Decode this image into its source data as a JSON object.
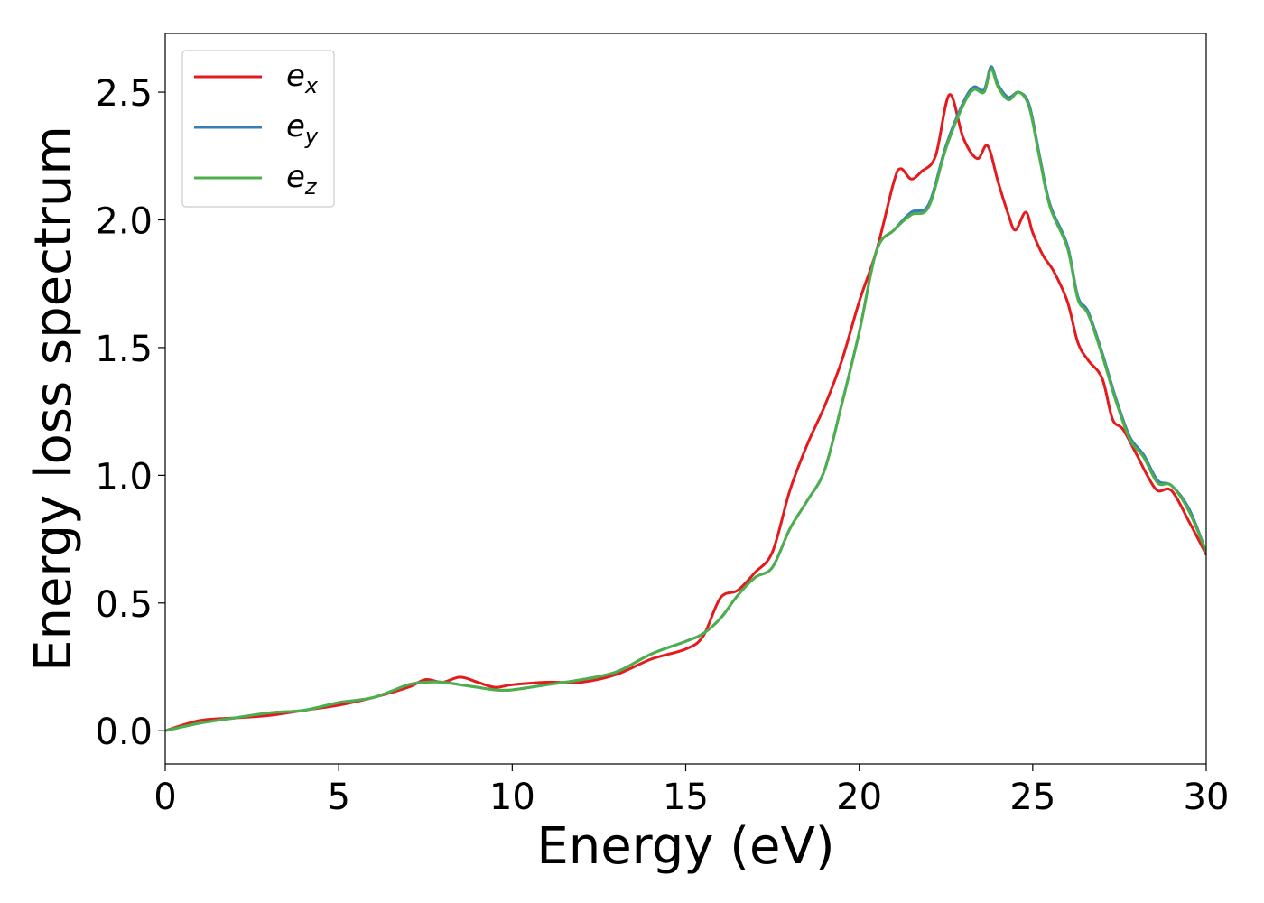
{
  "chart_data": {
    "type": "line",
    "xlabel": "Energy (eV)",
    "ylabel": "Energy loss spectrum",
    "xlim": [
      0,
      30
    ],
    "ylim": [
      -0.13,
      2.73
    ],
    "xticks": [
      0,
      5,
      10,
      15,
      20,
      25,
      30
    ],
    "xtick_labels": [
      "0",
      "5",
      "10",
      "15",
      "20",
      "25",
      "30"
    ],
    "yticks": [
      0.0,
      0.5,
      1.0,
      1.5,
      2.0,
      2.5
    ],
    "ytick_labels": [
      "0.0",
      "0.5",
      "1.0",
      "1.5",
      "2.0",
      "2.5"
    ],
    "grid": false,
    "legend_position": "top-left",
    "series": [
      {
        "name": "e_x",
        "label_main": "e",
        "label_sub": "x",
        "color": "#e41a1c",
        "x": [
          0,
          1,
          2,
          3,
          4,
          5,
          6,
          7,
          7.5,
          8,
          8.5,
          9,
          9.5,
          10,
          11,
          12,
          13,
          14,
          15,
          15.5,
          16,
          16.5,
          17,
          17.5,
          18,
          18.5,
          19,
          19.5,
          20,
          20.5,
          21,
          21.2,
          21.5,
          21.8,
          22.2,
          22.6,
          23.0,
          23.4,
          23.7,
          24.0,
          24.3,
          24.5,
          24.8,
          25.0,
          25.3,
          25.6,
          26.0,
          26.3,
          26.6,
          27.0,
          27.3,
          27.6,
          28.0,
          28.3,
          28.6,
          29.0,
          29.5,
          30
        ],
        "y": [
          0.0,
          0.04,
          0.05,
          0.06,
          0.08,
          0.1,
          0.13,
          0.17,
          0.2,
          0.19,
          0.21,
          0.19,
          0.17,
          0.18,
          0.19,
          0.19,
          0.22,
          0.28,
          0.32,
          0.37,
          0.52,
          0.55,
          0.62,
          0.7,
          0.94,
          1.12,
          1.27,
          1.45,
          1.68,
          1.88,
          2.15,
          2.2,
          2.16,
          2.19,
          2.25,
          2.49,
          2.32,
          2.24,
          2.29,
          2.15,
          2.02,
          1.96,
          2.03,
          1.95,
          1.86,
          1.8,
          1.68,
          1.52,
          1.45,
          1.38,
          1.22,
          1.18,
          1.08,
          1.0,
          0.94,
          0.94,
          0.82,
          0.69
        ]
      },
      {
        "name": "e_y",
        "label_main": "e",
        "label_sub": "y",
        "color": "#377eb8",
        "x": [
          0,
          1,
          2,
          3,
          4,
          5,
          6,
          7,
          7.5,
          8,
          8.5,
          9,
          9.5,
          10,
          11,
          12,
          13,
          14,
          15,
          15.5,
          16,
          16.5,
          17,
          17.5,
          18,
          18.5,
          19,
          19.5,
          20,
          20.5,
          21,
          21.5,
          22,
          22.5,
          23,
          23.3,
          23.6,
          23.8,
          24.0,
          24.3,
          24.6,
          24.9,
          25.2,
          25.5,
          26.0,
          26.3,
          26.6,
          27.0,
          27.4,
          27.8,
          28.2,
          28.6,
          29.0,
          29.5,
          30
        ],
        "y": [
          0.0,
          0.03,
          0.05,
          0.07,
          0.08,
          0.11,
          0.13,
          0.18,
          0.19,
          0.19,
          0.18,
          0.17,
          0.16,
          0.16,
          0.18,
          0.2,
          0.23,
          0.3,
          0.35,
          0.38,
          0.44,
          0.53,
          0.6,
          0.64,
          0.79,
          0.9,
          1.02,
          1.28,
          1.56,
          1.88,
          1.96,
          2.03,
          2.06,
          2.29,
          2.46,
          2.52,
          2.51,
          2.6,
          2.53,
          2.48,
          2.5,
          2.45,
          2.25,
          2.06,
          1.9,
          1.7,
          1.64,
          1.48,
          1.3,
          1.15,
          1.08,
          0.98,
          0.96,
          0.87,
          0.7
        ]
      },
      {
        "name": "e_z",
        "label_main": "e",
        "label_sub": "z",
        "color": "#4daf4a",
        "x": [
          0,
          1,
          2,
          3,
          4,
          5,
          6,
          7,
          7.5,
          8,
          8.5,
          9,
          9.5,
          10,
          11,
          12,
          13,
          14,
          15,
          15.5,
          16,
          16.5,
          17,
          17.5,
          18,
          18.5,
          19,
          19.5,
          20,
          20.5,
          21,
          21.5,
          22,
          22.5,
          23,
          23.3,
          23.6,
          23.8,
          24.0,
          24.3,
          24.6,
          24.9,
          25.2,
          25.5,
          26.0,
          26.3,
          26.6,
          27.0,
          27.4,
          27.8,
          28.2,
          28.6,
          29.0,
          29.5,
          30
        ],
        "y": [
          0.0,
          0.03,
          0.05,
          0.07,
          0.08,
          0.11,
          0.13,
          0.18,
          0.19,
          0.19,
          0.18,
          0.17,
          0.16,
          0.16,
          0.18,
          0.2,
          0.23,
          0.3,
          0.35,
          0.38,
          0.44,
          0.53,
          0.6,
          0.64,
          0.79,
          0.9,
          1.02,
          1.28,
          1.56,
          1.88,
          1.96,
          2.02,
          2.05,
          2.28,
          2.45,
          2.51,
          2.5,
          2.59,
          2.52,
          2.47,
          2.5,
          2.44,
          2.24,
          2.05,
          1.89,
          1.69,
          1.63,
          1.47,
          1.29,
          1.14,
          1.07,
          0.97,
          0.96,
          0.86,
          0.7
        ]
      }
    ]
  }
}
